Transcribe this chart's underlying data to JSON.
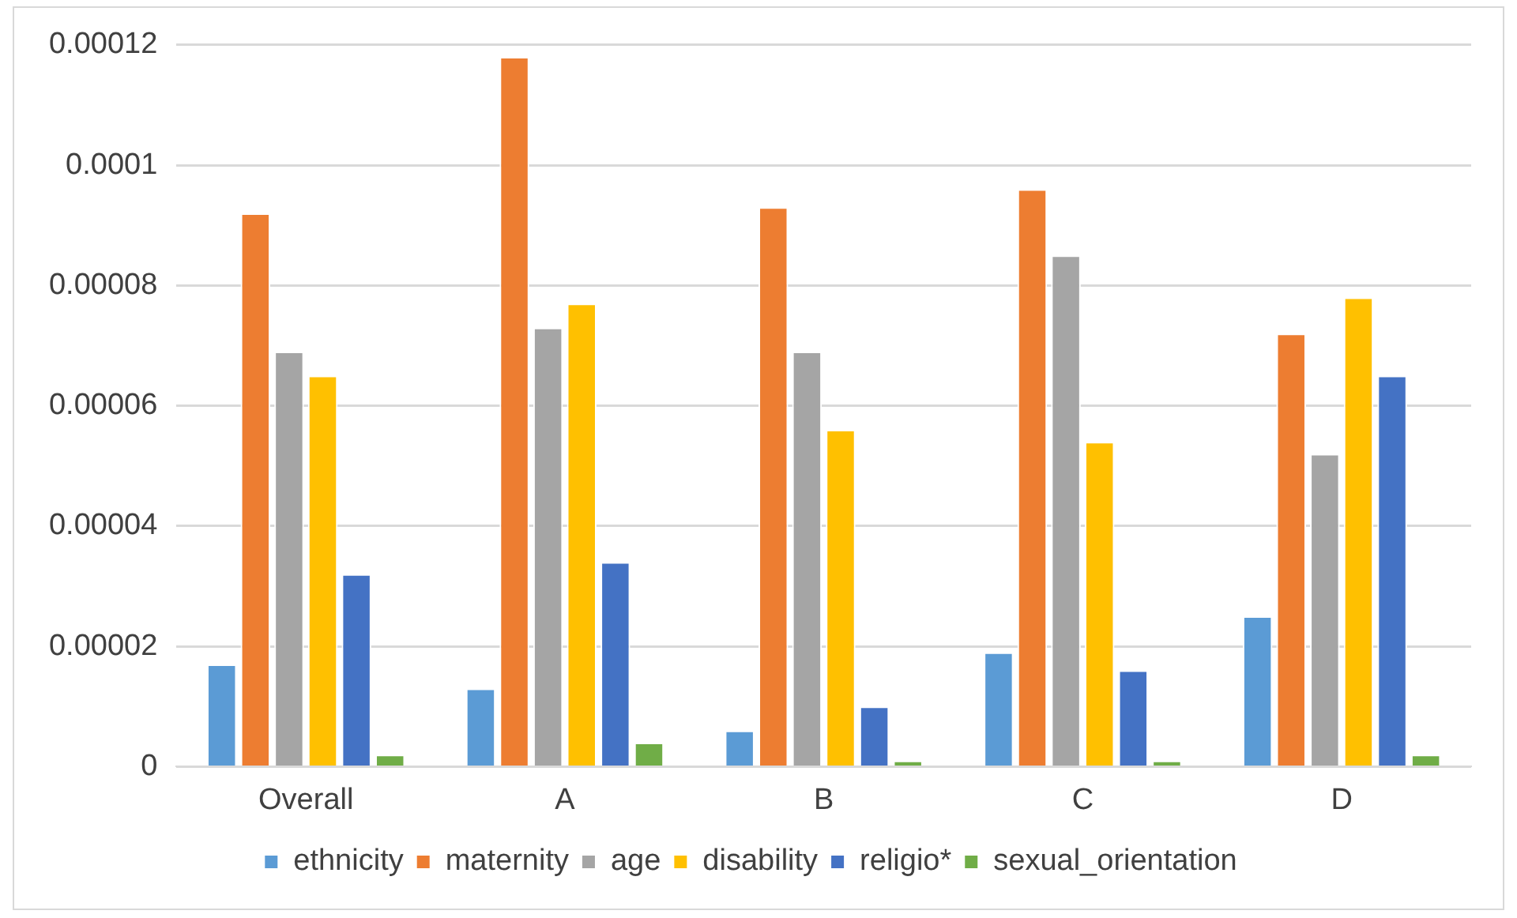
{
  "chart_data": {
    "type": "bar",
    "categories": [
      "Overall",
      "A",
      "B",
      "C",
      "D"
    ],
    "series": [
      {
        "name": "ethnicity",
        "color": "#5b9bd5",
        "values": [
          1.7e-05,
          1.3e-05,
          6e-06,
          1.9e-05,
          2.5e-05
        ]
      },
      {
        "name": "maternity",
        "color": "#ed7d31",
        "values": [
          9.2e-05,
          0.000118,
          9.3e-05,
          9.6e-05,
          7.2e-05
        ]
      },
      {
        "name": "age",
        "color": "#a5a5a5",
        "values": [
          6.9e-05,
          7.3e-05,
          6.9e-05,
          8.5e-05,
          5.2e-05
        ]
      },
      {
        "name": "disability",
        "color": "#ffc000",
        "values": [
          6.5e-05,
          7.7e-05,
          5.6e-05,
          5.4e-05,
          7.8e-05
        ]
      },
      {
        "name": "religio*",
        "color": "#4472c4",
        "values": [
          3.2e-05,
          3.4e-05,
          1e-05,
          1.6e-05,
          6.5e-05
        ]
      },
      {
        "name": "sexual_orientation",
        "color": "#70ad47",
        "values": [
          2e-06,
          4e-06,
          1e-06,
          1e-06,
          2e-06
        ]
      }
    ],
    "ylim": [
      0,
      0.00012
    ],
    "yticks": [
      0,
      {
        "value": 2e-05,
        "label": "0.00002"
      },
      {
        "value": 4e-05,
        "label": "0.00004"
      },
      {
        "value": 6e-05,
        "label": "0.00006"
      },
      {
        "value": 8e-05,
        "label": "0.00008"
      },
      0.0001,
      0.00012
    ],
    "grid": "y",
    "legend": "bottom"
  }
}
